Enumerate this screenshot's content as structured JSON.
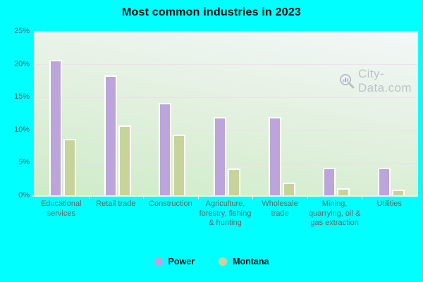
{
  "title": "Most common industries in 2023",
  "watermark": {
    "text": "City-Data.com"
  },
  "colors": {
    "background": "#00ffff",
    "power_bar": "#bba5da",
    "montana_bar": "#c6d49c",
    "plot_top": "#f2f7f7",
    "plot_bottom": "#cfecc9",
    "gridline": "#eedbe9",
    "title_text": "#0d0d0d",
    "axis_text": "#5e6965",
    "watermark_text": "#b7bec4"
  },
  "chart_data": {
    "type": "bar",
    "title": "Most common industries in 2023",
    "categories": [
      "Educational services",
      "Retail trade",
      "Construction",
      "Agriculture, forestry, fishing & hunting",
      "Wholesale trade",
      "Mining, quarrying, oil & gas extraction",
      "Utilities"
    ],
    "series": [
      {
        "name": "Power",
        "color": "#bba5da",
        "values": [
          20.7,
          18.4,
          14.2,
          12.0,
          12.0,
          4.3,
          4.3
        ]
      },
      {
        "name": "Montana",
        "color": "#c6d49c",
        "values": [
          8.7,
          10.7,
          9.3,
          4.2,
          2.0,
          1.2,
          1.0
        ]
      }
    ],
    "xlabel": "",
    "ylabel": "",
    "ylim": [
      0,
      25
    ],
    "yticks": [
      0,
      5,
      10,
      15,
      20,
      25
    ],
    "ytick_suffix": "%",
    "grid": true,
    "legend_position": "bottom"
  }
}
